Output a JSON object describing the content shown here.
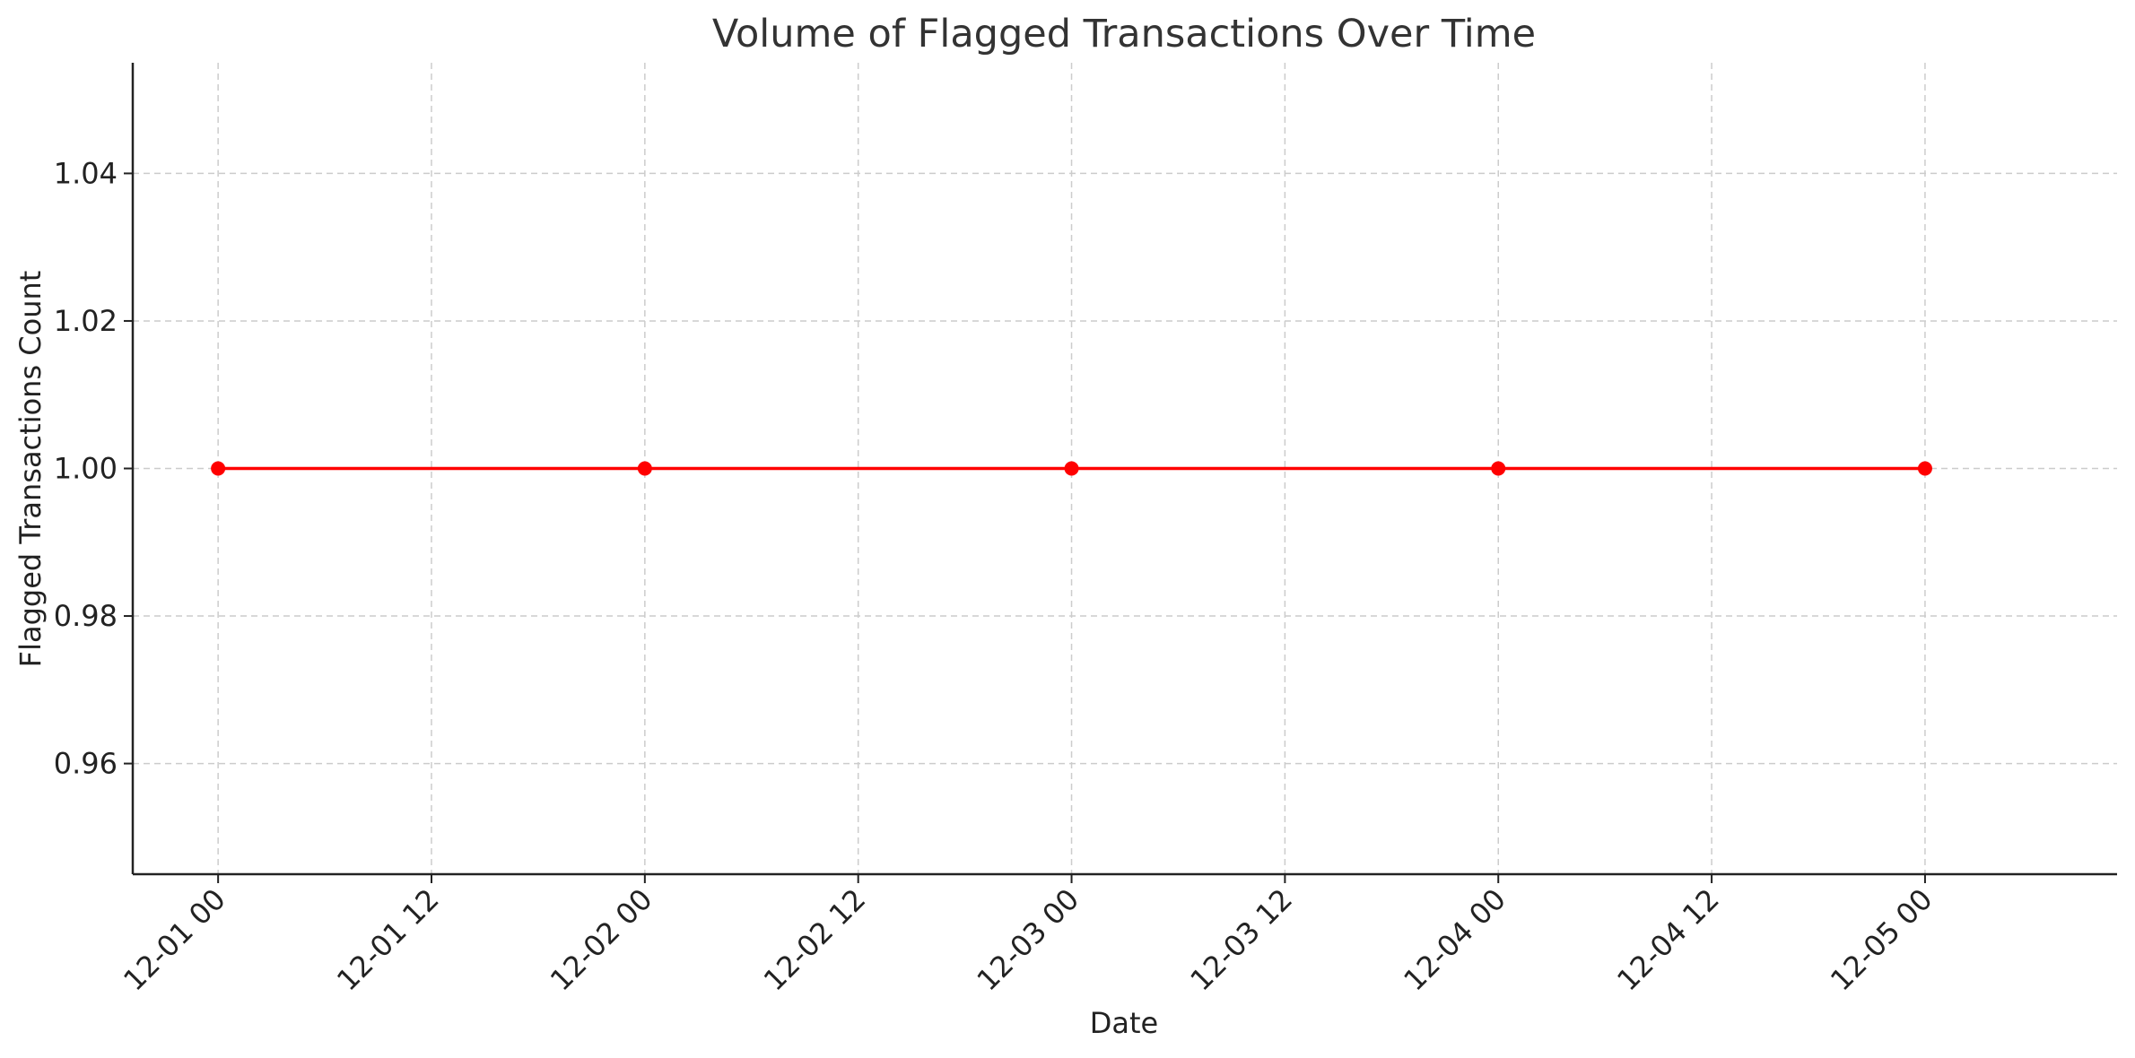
{
  "chart_data": {
    "type": "line",
    "title": "Volume of Flagged Transactions Over Time",
    "xlabel": "Date",
    "ylabel": "Flagged Transactions Count",
    "x_ticks": [
      "12-01 00",
      "12-01 12",
      "12-02 00",
      "12-02 12",
      "12-03 00",
      "12-03 12",
      "12-04 00",
      "12-04 12",
      "12-05 00"
    ],
    "y_ticks": [
      "0.96",
      "0.98",
      "1.00",
      "1.02",
      "1.04"
    ],
    "xlim": [
      "11-30 19:12",
      "12-05 10:48"
    ],
    "ylim": [
      0.945,
      1.055
    ],
    "grid": true,
    "series": [
      {
        "x": [
          "12-01 00",
          "12-02 00",
          "12-03 00",
          "12-04 00",
          "12-05 00"
        ],
        "values": [
          1,
          1,
          1,
          1,
          1
        ],
        "color": "#ff0000",
        "marker": "circle"
      }
    ]
  }
}
